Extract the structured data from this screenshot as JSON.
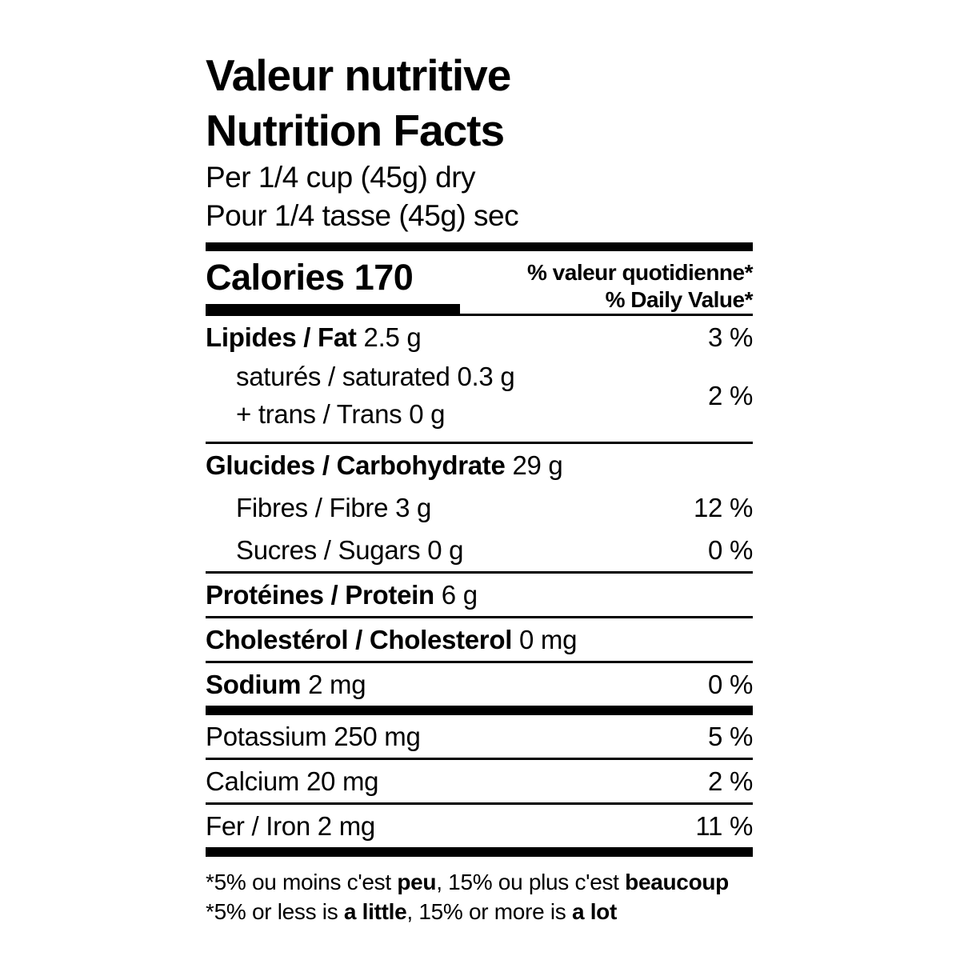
{
  "page": {
    "background_color": "#ffffff",
    "text_color": "#000000"
  },
  "label": {
    "title_fr": "Valeur nutritive",
    "title_en": "Nutrition Facts",
    "serving_line1": "Per 1/4 cup (45g) dry",
    "serving_line2": "Pour 1/4 tasse (45g) sec",
    "calories": {
      "label": "Calories",
      "value": "170"
    },
    "dv_header_line1": "% valeur quotidienne*",
    "dv_header_line2": "% Daily Value*",
    "fat": {
      "label": "Lipides / Fat",
      "value": "2.5 g",
      "dv": "3 %"
    },
    "saturated_trans": {
      "line1": "saturés / saturated 0.3 g",
      "line2": "+ trans / Trans 0 g",
      "dv": "2 %"
    },
    "carbohydrate": {
      "label": "Glucides / Carbohydrate",
      "value": "29 g"
    },
    "fibre": {
      "label": "Fibres / Fibre",
      "value": "3 g",
      "dv": "12 %"
    },
    "sugars": {
      "label": "Sucres / Sugars",
      "value": "0 g",
      "dv": "0 %"
    },
    "protein": {
      "label": "Protéines / Protein",
      "value": "6 g"
    },
    "cholesterol": {
      "label": "Cholestérol / Cholesterol",
      "value": "0 mg"
    },
    "sodium": {
      "label": "Sodium",
      "value": "2 mg",
      "dv": "0 %"
    },
    "potassium": {
      "label": "Potassium",
      "value": "250 mg",
      "dv": "5 %"
    },
    "calcium": {
      "label": "Calcium",
      "value": "20 mg",
      "dv": "2 %"
    },
    "iron": {
      "label": "Fer / Iron",
      "value": "2 mg",
      "dv": "11 %"
    },
    "footnote_fr": {
      "t1": "*5% ou moins c'est ",
      "b1": "peu",
      "t2": ", 15% ou plus c'est ",
      "b2": "beaucoup"
    },
    "footnote_en": {
      "t1": "*5% or less is ",
      "b1": "a little",
      "t2": ", 15% or more is ",
      "b2": "a lot"
    }
  }
}
